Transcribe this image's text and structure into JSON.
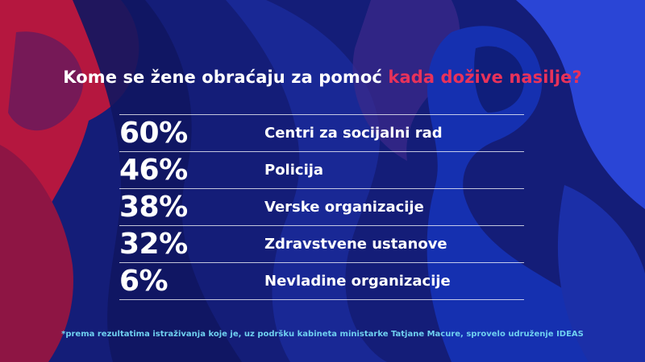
{
  "title": {
    "main": "Kome se žene obraćaju za pomoć",
    "accent": "kada dožive nasilje?"
  },
  "colors": {
    "background": "#131f7a",
    "accent": "#e8325a",
    "footnote": "#6fd0f0"
  },
  "chart_data": {
    "type": "table",
    "title": "Kome se žene obraćaju za pomoć kada dožive nasilje?",
    "rows": [
      {
        "value": "60%",
        "label": "Centri za socijalni rad"
      },
      {
        "value": "46%",
        "label": "Policija"
      },
      {
        "value": "38%",
        "label": "Verske organizacije"
      },
      {
        "value": "32%",
        "label": "Zdravstvene ustanove"
      },
      {
        "value": "6%",
        "label": "Nevladine organizacije"
      }
    ]
  },
  "footnote": "*prema rezultatima istraživanja koje je, uz podršku kabineta ministarke Tatjane Macure, sprovelo udruženje IDEAS"
}
